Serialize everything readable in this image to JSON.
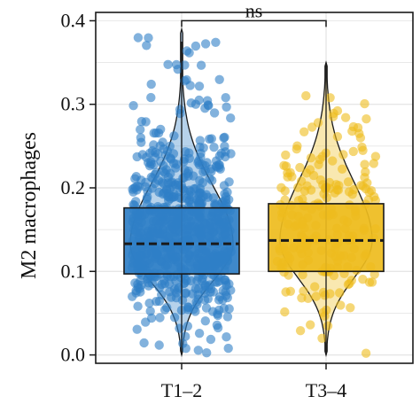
{
  "chart_data": {
    "type": "box-violin-jitter",
    "title": "",
    "xlabel": "",
    "ylabel": "M2 macrophages",
    "ylim": [
      -0.01,
      0.41
    ],
    "yticks": [
      0.0,
      0.1,
      0.2,
      0.3,
      0.4
    ],
    "ytick_labels": [
      "0.0",
      "0.1",
      "0.2",
      "0.3",
      "0.4"
    ],
    "grid": true,
    "legend": "none",
    "significance": {
      "label": "ns",
      "bracket_y": 0.4,
      "between": [
        "T1–2",
        "T3–4"
      ]
    },
    "categories": [
      "T1–2",
      "T3–4"
    ],
    "groups": [
      {
        "name": "T1–2",
        "color": "#2f7fc7",
        "box": {
          "q1": 0.097,
          "median": 0.133,
          "q3": 0.176
        },
        "whisker": {
          "low": 0.0,
          "high": 0.375
        },
        "violin_range": [
          0.0,
          0.39
        ],
        "points_range": [
          0.0,
          0.385
        ],
        "approx_points": 700
      },
      {
        "name": "T3–4",
        "color": "#eebc1d",
        "box": {
          "q1": 0.1,
          "median": 0.137,
          "q3": 0.181
        },
        "whisker": {
          "low": 0.0,
          "high": 0.35
        },
        "violin_range": [
          0.0,
          0.35
        ],
        "points_range": [
          0.0,
          0.35
        ],
        "approx_points": 220
      }
    ]
  }
}
